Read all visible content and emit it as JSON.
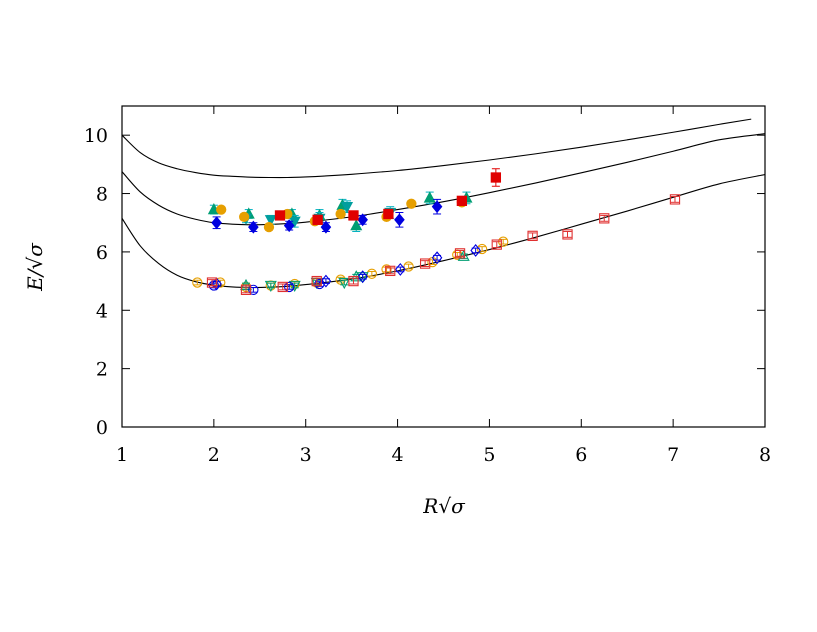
{
  "chart_data": {
    "type": "scatter",
    "title": "",
    "xlabel": "R√σ",
    "ylabel": "E/√σ",
    "xlim": [
      1,
      8
    ],
    "ylim": [
      0,
      11
    ],
    "xticks": [
      "1",
      "2",
      "3",
      "4",
      "5",
      "6",
      "7",
      "8"
    ],
    "yticks": [
      "0",
      "2",
      "4",
      "6",
      "8",
      "10"
    ],
    "grid": false,
    "legend": "none",
    "curves": [
      {
        "points": [
          [
            1.0,
            10.0
          ],
          [
            1.2,
            9.4
          ],
          [
            1.4,
            9.05
          ],
          [
            1.6,
            8.85
          ],
          [
            1.8,
            8.72
          ],
          [
            2.0,
            8.63
          ],
          [
            2.2,
            8.59
          ],
          [
            2.4,
            8.56
          ],
          [
            2.6,
            8.55
          ],
          [
            2.8,
            8.55
          ],
          [
            3.0,
            8.57
          ],
          [
            3.2,
            8.6
          ],
          [
            3.5,
            8.66
          ],
          [
            4.0,
            8.79
          ],
          [
            4.5,
            8.96
          ],
          [
            5.0,
            9.15
          ],
          [
            5.5,
            9.36
          ],
          [
            6.0,
            9.59
          ],
          [
            6.5,
            9.84
          ],
          [
            7.0,
            10.1
          ],
          [
            7.5,
            10.37
          ],
          [
            7.85,
            10.55
          ]
        ]
      },
      {
        "points": [
          [
            1.0,
            8.75
          ],
          [
            1.2,
            8.05
          ],
          [
            1.4,
            7.6
          ],
          [
            1.6,
            7.3
          ],
          [
            1.8,
            7.12
          ],
          [
            2.0,
            7.0
          ],
          [
            2.2,
            6.95
          ],
          [
            2.4,
            6.93
          ],
          [
            2.6,
            6.94
          ],
          [
            2.8,
            6.97
          ],
          [
            3.0,
            7.02
          ],
          [
            3.5,
            7.2
          ],
          [
            4.0,
            7.45
          ],
          [
            4.5,
            7.72
          ],
          [
            5.0,
            8.03
          ],
          [
            5.5,
            8.36
          ],
          [
            6.0,
            8.71
          ],
          [
            6.5,
            9.07
          ],
          [
            7.0,
            9.45
          ],
          [
            7.5,
            9.84
          ],
          [
            8.0,
            10.05
          ]
        ]
      },
      {
        "points": [
          [
            1.0,
            7.15
          ],
          [
            1.2,
            6.2
          ],
          [
            1.4,
            5.6
          ],
          [
            1.6,
            5.2
          ],
          [
            1.8,
            4.98
          ],
          [
            2.0,
            4.86
          ],
          [
            2.2,
            4.8
          ],
          [
            2.4,
            4.78
          ],
          [
            2.6,
            4.79
          ],
          [
            2.8,
            4.82
          ],
          [
            3.0,
            4.88
          ],
          [
            3.5,
            5.07
          ],
          [
            4.0,
            5.35
          ],
          [
            4.5,
            5.7
          ],
          [
            5.0,
            6.08
          ],
          [
            5.5,
            6.5
          ],
          [
            6.0,
            6.95
          ],
          [
            6.5,
            7.4
          ],
          [
            7.0,
            7.87
          ],
          [
            7.5,
            8.33
          ],
          [
            8.0,
            8.65
          ]
        ]
      }
    ],
    "series": [
      {
        "marker": "triangle-up",
        "filled": true,
        "color": "#009e73",
        "errcolor": "#00b0c0",
        "points": [
          [
            2.0,
            7.45,
            0.15
          ],
          [
            2.38,
            7.3,
            0.15
          ],
          [
            2.85,
            7.3,
            0.15
          ],
          [
            3.15,
            7.25,
            0.2
          ],
          [
            3.4,
            7.6,
            0.2
          ],
          [
            3.55,
            6.9,
            0.2
          ],
          [
            4.35,
            7.85,
            0.2
          ],
          [
            4.75,
            7.85,
            0.2
          ]
        ]
      },
      {
        "marker": "triangle-down",
        "filled": true,
        "color": "#009e9e",
        "errcolor": "#00b0c0",
        "points": [
          [
            2.35,
            7.15,
            0.15
          ],
          [
            2.62,
            7.1,
            0.15
          ],
          [
            2.88,
            7.05,
            0.2
          ],
          [
            3.15,
            7.15,
            0.2
          ],
          [
            3.45,
            7.55,
            0.2
          ],
          [
            3.92,
            7.35,
            0.2
          ]
        ]
      },
      {
        "marker": "circle",
        "filled": true,
        "color": "#e69f00",
        "errcolor": "#e69f00",
        "points": [
          [
            2.08,
            7.45,
            0.08
          ],
          [
            2.33,
            7.2,
            0.1
          ],
          [
            2.6,
            6.85,
            0.1
          ],
          [
            2.8,
            7.3,
            0.1
          ],
          [
            3.1,
            7.05,
            0.1
          ],
          [
            3.38,
            7.3,
            0.1
          ],
          [
            3.88,
            7.2,
            0.1
          ],
          [
            4.15,
            7.65,
            0.1
          ],
          [
            4.7,
            7.7,
            0.1
          ]
        ]
      },
      {
        "marker": "diamond",
        "filled": true,
        "color": "#0000e0",
        "errcolor": "#0000e0",
        "points": [
          [
            2.03,
            7.0,
            0.2
          ],
          [
            2.43,
            6.85,
            0.15
          ],
          [
            2.82,
            6.9,
            0.15
          ],
          [
            3.22,
            6.85,
            0.15
          ],
          [
            3.62,
            7.1,
            0.15
          ],
          [
            4.02,
            7.1,
            0.25
          ],
          [
            4.43,
            7.55,
            0.25
          ]
        ]
      },
      {
        "marker": "square",
        "filled": true,
        "color": "#e00000",
        "errcolor": "#e00000",
        "points": [
          [
            2.72,
            7.25,
            0.1
          ],
          [
            3.13,
            7.1,
            0.1
          ],
          [
            3.52,
            7.25,
            0.1
          ],
          [
            3.9,
            7.3,
            0.12
          ],
          [
            4.7,
            7.75,
            0.1
          ],
          [
            5.07,
            8.55,
            0.3
          ]
        ]
      },
      {
        "marker": "circle",
        "filled": false,
        "color": "#e69f00",
        "errcolor": "#e69f00",
        "points": [
          [
            1.82,
            4.95,
            0.08
          ],
          [
            2.07,
            4.95,
            0.08
          ],
          [
            2.35,
            4.8,
            0.08
          ],
          [
            2.62,
            4.85,
            0.08
          ],
          [
            2.88,
            4.9,
            0.08
          ],
          [
            3.12,
            4.95,
            0.08
          ],
          [
            3.38,
            5.05,
            0.08
          ],
          [
            3.72,
            5.25,
            0.08
          ],
          [
            3.88,
            5.4,
            0.08
          ],
          [
            4.12,
            5.5,
            0.08
          ],
          [
            4.38,
            5.65,
            0.08
          ],
          [
            4.65,
            5.9,
            0.08
          ],
          [
            4.92,
            6.1,
            0.08
          ],
          [
            5.15,
            6.35,
            0.08
          ]
        ]
      },
      {
        "marker": "triangle-down",
        "filled": false,
        "color": "#009e73",
        "errcolor": "#009e73",
        "points": [
          [
            2.62,
            4.85,
            0.08
          ],
          [
            2.88,
            4.85,
            0.08
          ],
          [
            3.12,
            4.95,
            0.08
          ],
          [
            3.42,
            4.95,
            0.08
          ],
          [
            3.62,
            5.15,
            0.08
          ]
        ]
      },
      {
        "marker": "triangle-up",
        "filled": false,
        "color": "#009e73",
        "errcolor": "#009e73",
        "points": [
          [
            2.35,
            4.85,
            0.08
          ],
          [
            3.55,
            5.15,
            0.08
          ],
          [
            4.72,
            5.85,
            0.08
          ]
        ]
      },
      {
        "marker": "circle",
        "filled": false,
        "color": "#0000e0",
        "errcolor": "#0000e0",
        "points": [
          [
            2.0,
            4.85,
            0.08
          ],
          [
            2.43,
            4.7,
            0.08
          ],
          [
            2.82,
            4.8,
            0.08
          ],
          [
            3.15,
            4.9,
            0.08
          ]
        ]
      },
      {
        "marker": "diamond",
        "filled": false,
        "color": "#0000e0",
        "errcolor": "#0000e0",
        "points": [
          [
            2.03,
            4.9,
            0.08
          ],
          [
            3.22,
            5.0,
            0.08
          ],
          [
            3.62,
            5.15,
            0.08
          ],
          [
            4.03,
            5.4,
            0.08
          ],
          [
            4.43,
            5.8,
            0.08
          ],
          [
            4.85,
            6.05,
            0.08
          ]
        ]
      },
      {
        "marker": "square",
        "filled": false,
        "color": "#e03030",
        "errcolor": "#e03030",
        "points": [
          [
            1.98,
            4.95,
            0.1
          ],
          [
            2.35,
            4.7,
            0.1
          ],
          [
            2.75,
            4.8,
            0.1
          ],
          [
            3.12,
            5.0,
            0.1
          ],
          [
            3.52,
            5.0,
            0.1
          ],
          [
            3.92,
            5.35,
            0.1
          ],
          [
            4.3,
            5.6,
            0.1
          ],
          [
            4.68,
            5.95,
            0.1
          ],
          [
            5.08,
            6.25,
            0.1
          ],
          [
            5.47,
            6.55,
            0.1
          ],
          [
            5.85,
            6.6,
            0.1
          ],
          [
            6.25,
            7.15,
            0.1
          ],
          [
            7.02,
            7.8,
            0.1
          ]
        ]
      }
    ]
  }
}
